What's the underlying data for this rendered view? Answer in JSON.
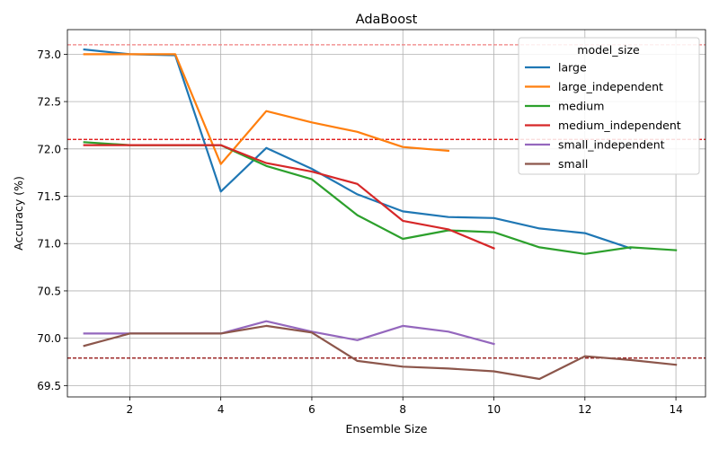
{
  "chart_data": {
    "type": "line",
    "title": "AdaBoost",
    "xlabel": "Ensemble Size",
    "ylabel": "Accuracy (%)",
    "xlim": [
      0.63,
      14.65
    ],
    "ylim": [
      69.38,
      73.26
    ],
    "xticks": [
      2,
      4,
      6,
      8,
      10,
      12,
      14
    ],
    "yticks": [
      69.5,
      70.0,
      70.5,
      71.0,
      71.5,
      72.0,
      72.5,
      73.0
    ],
    "ytick_labels": [
      "69.5",
      "70.0",
      "70.5",
      "71.0",
      "71.5",
      "72.0",
      "72.5",
      "73.0"
    ],
    "grid": true,
    "legend": {
      "title": "model_size",
      "location": "upper right"
    },
    "reference_lines": [
      {
        "y": 73.1,
        "color": "#f08080",
        "style": "dashed"
      },
      {
        "y": 72.1,
        "color": "#dd0000",
        "style": "dashed"
      },
      {
        "y": 69.79,
        "color": "#8b0000",
        "style": "dashed"
      }
    ],
    "series": [
      {
        "name": "large",
        "color": "#1f77b4",
        "x": [
          1,
          2,
          3,
          4,
          5,
          6,
          7,
          8,
          9,
          10,
          11,
          12,
          13
        ],
        "y": [
          73.05,
          73.0,
          72.99,
          71.55,
          72.01,
          71.79,
          71.52,
          71.34,
          71.28,
          71.27,
          71.16,
          71.11,
          70.95
        ]
      },
      {
        "name": "large_independent",
        "color": "#ff7f0e",
        "x": [
          1,
          2,
          3,
          4,
          5,
          6,
          7,
          8,
          9
        ],
        "y": [
          73.0,
          73.0,
          73.0,
          71.84,
          72.4,
          72.28,
          72.18,
          72.02,
          71.98
        ]
      },
      {
        "name": "medium",
        "color": "#2ca02c",
        "x": [
          1,
          2,
          3,
          4,
          5,
          6,
          7,
          8,
          9,
          10,
          11,
          12,
          13,
          14
        ],
        "y": [
          72.07,
          72.04,
          72.04,
          72.04,
          71.82,
          71.68,
          71.3,
          71.05,
          71.14,
          71.12,
          70.96,
          70.89,
          70.96,
          70.93
        ]
      },
      {
        "name": "medium_independent",
        "color": "#d62728",
        "x": [
          1,
          2,
          3,
          4,
          5,
          6,
          7,
          8,
          9,
          10
        ],
        "y": [
          72.04,
          72.04,
          72.04,
          72.04,
          71.85,
          71.76,
          71.63,
          71.24,
          71.15,
          70.95
        ]
      },
      {
        "name": "small_independent",
        "color": "#9467bd",
        "x": [
          1,
          2,
          3,
          4,
          5,
          6,
          7,
          8,
          9,
          10
        ],
        "y": [
          70.05,
          70.05,
          70.05,
          70.05,
          70.18,
          70.07,
          69.98,
          70.13,
          70.07,
          69.94
        ]
      },
      {
        "name": "small",
        "color": "#8c564b",
        "x": [
          1,
          2,
          3,
          4,
          5,
          6,
          7,
          8,
          9,
          10,
          11,
          12,
          13,
          14
        ],
        "y": [
          69.92,
          70.05,
          70.05,
          70.05,
          70.13,
          70.06,
          69.76,
          69.7,
          69.68,
          69.65,
          69.57,
          69.81,
          69.77,
          69.72
        ]
      }
    ]
  }
}
